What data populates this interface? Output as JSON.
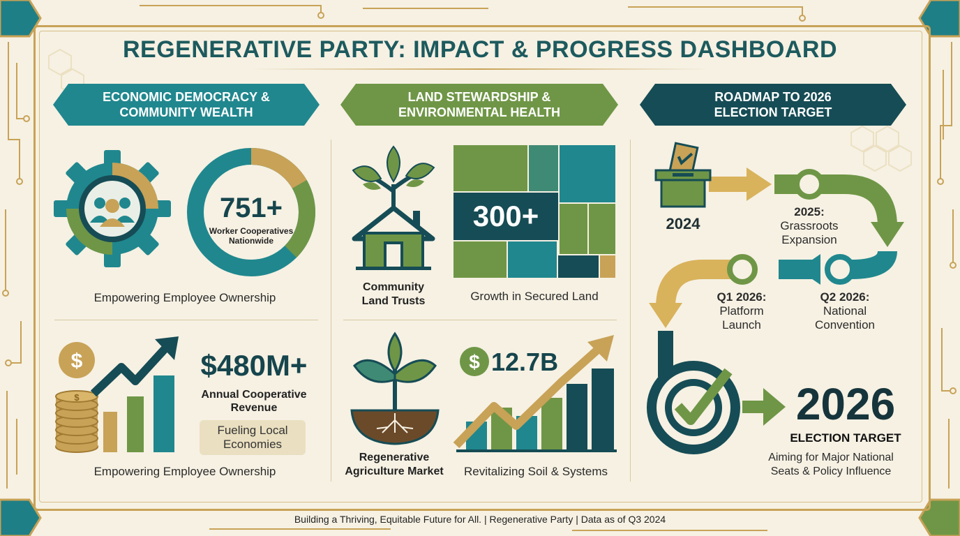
{
  "title": "REGENERATIVE PARTY: IMPACT & PROGRESS DASHBOARD",
  "columns": {
    "economic": {
      "banner": [
        "ECONOMIC DEMOCRACY &",
        "COMMUNITY WEALTH"
      ],
      "coops": {
        "value": "751+",
        "label": [
          "Worker Cooperatives",
          "Nationwide"
        ],
        "caption": "Empowering Employee Ownership"
      },
      "revenue": {
        "value": "$480M+",
        "label": [
          "Annual Cooperative",
          "Revenue"
        ],
        "badge": [
          "Fueling Local",
          "Economies"
        ],
        "caption": "Empowering Employee Ownership"
      }
    },
    "land": {
      "banner": [
        "LAND STEWARDSHIP &",
        "ENVIRONMENTAL HEALTH"
      ],
      "trusts": {
        "label": [
          "Community",
          "Land Trusts"
        ],
        "value": "300+",
        "caption": "Growth in Secured Land"
      },
      "agriculture": {
        "label": [
          "Regenerative",
          "Agriculture Market"
        ],
        "value": "12.7B",
        "caption": "Revitalizing Soil & Systems"
      }
    },
    "roadmap": {
      "banner": [
        "ROADMAP TO 2026",
        "ELECTION TARGET"
      ],
      "milestones": [
        {
          "year": "2024",
          "label": ""
        },
        {
          "year": "2025:",
          "label": [
            "Grassroots",
            "Expansion"
          ]
        },
        {
          "year": "Q1 2026:",
          "label": [
            "Platform",
            "Launch"
          ]
        },
        {
          "year": "Q2 2026:",
          "label": [
            "National",
            "Convention"
          ]
        }
      ],
      "target": {
        "year": "2026",
        "label": "ELECTION TARGET",
        "caption": [
          "Aiming for Major National",
          "Seats & Policy Influence"
        ]
      }
    }
  },
  "footer": "Building a Thriving, Equitable Future for All. | Regenerative Party | Data as of Q3 2024",
  "colors": {
    "teal": "#20878e",
    "green": "#6f9646",
    "navy": "#164c55",
    "gold": "#c8a257",
    "background": "#f6f1e3"
  },
  "icons": [
    "gear-people-icon",
    "coin-stack-icon",
    "growth-arrow-icon",
    "tree-house-icon",
    "sprout-icon",
    "ballot-box-icon",
    "target-check-icon",
    "circuit-trace-icon",
    "hexagon-icon"
  ]
}
